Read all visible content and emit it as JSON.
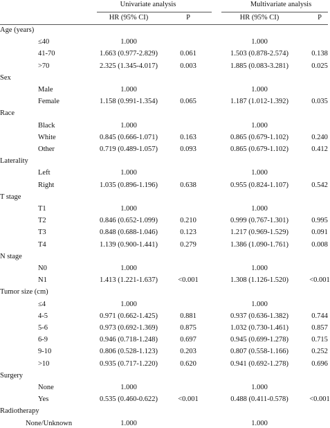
{
  "table": {
    "header": {
      "univariate": "Univariate analysis",
      "multivariate": "Multivariate analysis",
      "uni_hr": "HR (95% CI)",
      "uni_p": "P",
      "multi_hr": "HR (95% CI)",
      "multi_p": "P"
    },
    "rows": [
      {
        "group": "Age (years)"
      },
      {
        "label": "≤40",
        "uni_hr": "1.000",
        "multi_hr": "1.000"
      },
      {
        "label": "41-70",
        "uni_hr": "1.663 (0.977-2.829)",
        "uni_p": "0.061",
        "multi_hr": "1.503 (0.878-2.574)",
        "multi_p": "0.138"
      },
      {
        "label": ">70",
        "uni_hr": "2.325 (1.345-4.017)",
        "uni_p": "0.003",
        "multi_hr": "1.885 (0.083-3.281)",
        "multi_p": "0.025"
      },
      {
        "group": "Sex"
      },
      {
        "label": "Male",
        "uni_hr": "1.000",
        "multi_hr": "1.000"
      },
      {
        "label": "Female",
        "uni_hr": "1.158 (0.991-1.354)",
        "uni_p": "0.065",
        "multi_hr": "1.187 (1.012-1.392)",
        "multi_p": "0.035"
      },
      {
        "group": "Race"
      },
      {
        "label": "Black",
        "uni_hr": "1.000",
        "multi_hr": "1.000"
      },
      {
        "label": "White",
        "uni_hr": "0.845 (0.666-1.071)",
        "uni_p": "0.163",
        "multi_hr": "0.865   (0.679-1.102)",
        "multi_p": "0.240"
      },
      {
        "label": "Other",
        "uni_hr": "0.719 (0.489-1.057)",
        "uni_p": "0.093",
        "multi_hr": "0.865 (0.679-1.102)",
        "multi_p": "0.412"
      },
      {
        "group": "Laterality"
      },
      {
        "label": "Left",
        "uni_hr": "1.000",
        "multi_hr": "1.000"
      },
      {
        "label": "Right",
        "uni_hr": "1.035 (0.896-1.196)",
        "uni_p": "0.638",
        "multi_hr": "0.955 (0.824-1.107)",
        "multi_p": "0.542"
      },
      {
        "group": "T stage"
      },
      {
        "label": "T1",
        "uni_hr": "1.000",
        "multi_hr": "1.000"
      },
      {
        "label": "T2",
        "uni_hr": "0.846 (0.652-1.099)",
        "uni_p": "0.210",
        "multi_hr": "0.999 (0.767-1.301)",
        "multi_p": "0.995"
      },
      {
        "label": "T3",
        "uni_hr": "0.848 (0.688-1.046)",
        "uni_p": "0.123",
        "multi_hr": "1.217 (0.969-1.529)",
        "multi_p": "0.091"
      },
      {
        "label": "T4",
        "uni_hr": "1.139 (0.900-1.441)",
        "uni_p": "0.279",
        "multi_hr": "1.386 (1.090-1.761)",
        "multi_p": "0.008"
      },
      {
        "group": " N stage"
      },
      {
        "label": "N0",
        "uni_hr": "1.000",
        "multi_hr": "1.000"
      },
      {
        "label": "N1",
        "uni_hr": "1.413 (1.221-1.637)",
        "uni_p": "<0.001",
        "multi_hr": "1.308 (1.126-1.520)",
        "multi_p": "<0.001"
      },
      {
        "group": "Tumor size (cm)"
      },
      {
        "label": "≤4",
        "uni_hr": "1.000",
        "multi_hr": "1.000"
      },
      {
        "label": "4-5",
        "uni_hr": "0.971 (0.662-1.425)",
        "uni_p": "0.881",
        "multi_hr": "0.937 (0.636-1.382)",
        "multi_p": "0.744"
      },
      {
        "label": "5-6",
        "uni_hr": "0.973 (0.692-1.369)",
        "uni_p": "0.875",
        "multi_hr": "1.032 (0.730-1.461)",
        "multi_p": "0.857"
      },
      {
        "label": "6-9",
        "uni_hr": "0.946 (0.718-1.248)",
        "uni_p": "0.697",
        "multi_hr": "0.945 (0.699-1.278)",
        "multi_p": "0.715"
      },
      {
        "label": "9-10",
        "uni_hr": "0.806 (0.528-1.123)",
        "uni_p": "0.203",
        "multi_hr": "0.807 (0.558-1.166)",
        "multi_p": "0.252"
      },
      {
        "label": ">10",
        "uni_hr": "0.935 (0.717-1.220)",
        "uni_p": "0.620",
        "multi_hr": "0.941 (0.692-1.278)",
        "multi_p": "0.696"
      },
      {
        "group": "Surgery"
      },
      {
        "label": "None",
        "uni_hr": "1.000",
        "multi_hr": "1.000"
      },
      {
        "label": "Yes",
        "uni_hr": "0.535 (0.460-0.622)",
        "uni_p": "<0.001",
        "multi_hr": "0.488 (0.411-0.578)",
        "multi_p": "<0.001"
      },
      {
        "group": "Radiotherapy"
      },
      {
        "label": "None/Unknown",
        "uni_hr": "1.000",
        "multi_hr": "1.000"
      }
    ]
  }
}
